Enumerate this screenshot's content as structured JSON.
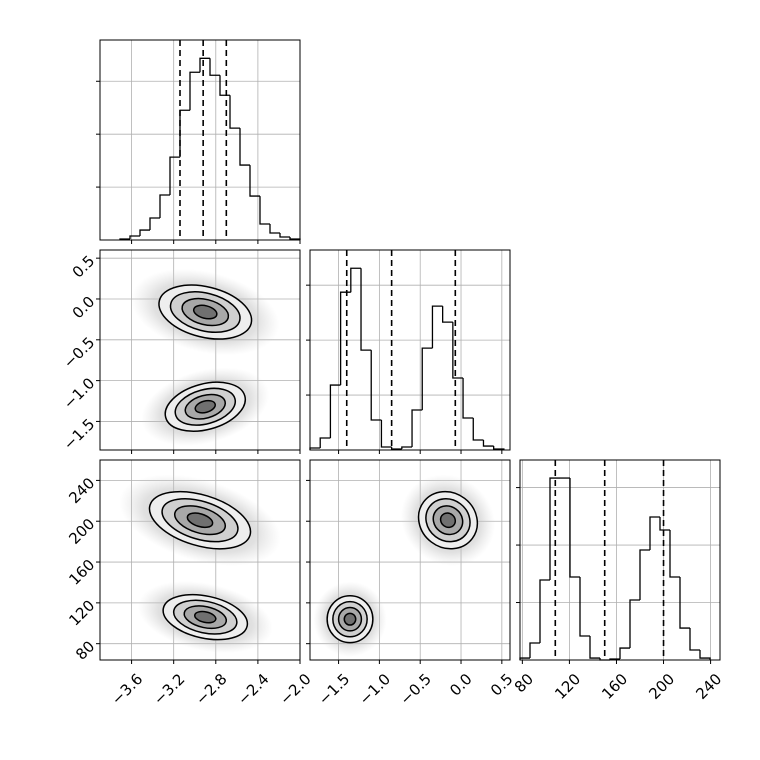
{
  "chart_data": {
    "type": "corner",
    "grid": true,
    "levels": [
      0.5,
      1,
      1.5,
      2
    ],
    "parameters": [
      {
        "xlim": [
          -3.9,
          -2.0
        ],
        "ticks": [
          {
            "value": -3.6,
            "label": "−3.6"
          },
          {
            "value": -3.2,
            "label": "−3.2"
          },
          {
            "value": -2.8,
            "label": "−2.8"
          },
          {
            "value": -2.4,
            "label": "−2.4"
          },
          {
            "value": -2.0,
            "label": "−2.0"
          }
        ],
        "quantiles": [
          -3.14,
          -2.92,
          -2.7
        ],
        "hist": {
          "bins": [
            -3.71,
            -3.615,
            -3.52,
            -3.425,
            -3.33,
            -3.235,
            -3.14,
            -3.045,
            -2.95,
            -2.855,
            -2.76,
            -2.665,
            -2.57,
            -2.475,
            -2.38,
            -2.285,
            -2.19,
            -2.095,
            -2.0
          ],
          "counts": [
            9,
            38,
            94,
            208,
            425,
            783,
            1226,
            1585,
            1717,
            1557,
            1368,
            1057,
            708,
            415,
            151,
            66,
            28,
            9
          ],
          "ylim": [
            0,
            1890
          ],
          "yticks": [
            500,
            1000,
            1500
          ]
        }
      },
      {
        "xlim": [
          -1.85,
          0.6
        ],
        "ticks": [
          {
            "value": -1.5,
            "label": "−1.5"
          },
          {
            "value": -1.0,
            "label": "−1.0"
          },
          {
            "value": -0.5,
            "label": "−0.5"
          },
          {
            "value": 0.0,
            "label": "0.0"
          },
          0.5
        ],
        "quantiles": [
          -1.4,
          -0.85,
          -0.07
        ],
        "hist": {
          "bins": [
            -1.85,
            -1.725,
            -1.6,
            -1.475,
            -1.35,
            -1.225,
            -1.1,
            -0.975,
            -0.85,
            -0.725,
            -0.6,
            -0.475,
            -0.35,
            -0.225,
            -0.1,
            0.025,
            0.15,
            0.275,
            0.4,
            0.525
          ],
          "counts": [
            18,
            109,
            591,
            1436,
            1654,
            909,
            273,
            27,
            9,
            27,
            364,
            927,
            1309,
            1164,
            655,
            291,
            91,
            36,
            9
          ],
          "ylim": [
            0,
            1820
          ],
          "yticks": [
            500,
            1000,
            1500
          ]
        }
      },
      {
        "xlim": [
          78,
          248
        ],
        "ylim": [
          64,
          260
        ],
        "ticks": [
          80,
          120,
          160,
          200,
          240
        ],
        "quantiles": [
          108,
          150,
          200
        ],
        "hist": {
          "bins": [
            78,
            86.5,
            95,
            103.5,
            112,
            120.5,
            129,
            137.5,
            146,
            154.5,
            163,
            171.5,
            180,
            188.5,
            197,
            205.5,
            214,
            222.5,
            231,
            239.5
          ],
          "counts": [
            17,
            148,
            696,
            1583,
            1583,
            722,
            209,
            17,
            0,
            9,
            104,
            522,
            957,
            1244,
            1131,
            722,
            278,
            87,
            17
          ],
          "ylim": [
            0,
            1740
          ],
          "yticks": [
            500,
            1000,
            1500
          ]
        }
      }
    ],
    "pairs": [
      {
        "x": 0,
        "y": 1,
        "modes": [
          {
            "x": -2.9,
            "y": -0.16,
            "sx": 0.22,
            "sy": 0.165,
            "rho": -0.3
          },
          {
            "x": -2.9,
            "y": -1.32,
            "sx": 0.19,
            "sy": 0.15,
            "rho": 0.3
          }
        ]
      },
      {
        "x": 0,
        "y": 2,
        "modes": [
          {
            "x": -2.95,
            "y": 201,
            "sx": 0.24,
            "sy": 14,
            "rho": -0.4
          },
          {
            "x": -2.9,
            "y": 106,
            "sx": 0.2,
            "sy": 11,
            "rho": -0.3
          }
        ]
      },
      {
        "x": 1,
        "y": 2,
        "modes": [
          {
            "x": -0.16,
            "y": 201,
            "sx": 0.18,
            "sy": 14,
            "rho": -0.1
          },
          {
            "x": -1.36,
            "y": 104,
            "sx": 0.14,
            "sy": 11.5,
            "rho": 0
          }
        ]
      }
    ]
  }
}
